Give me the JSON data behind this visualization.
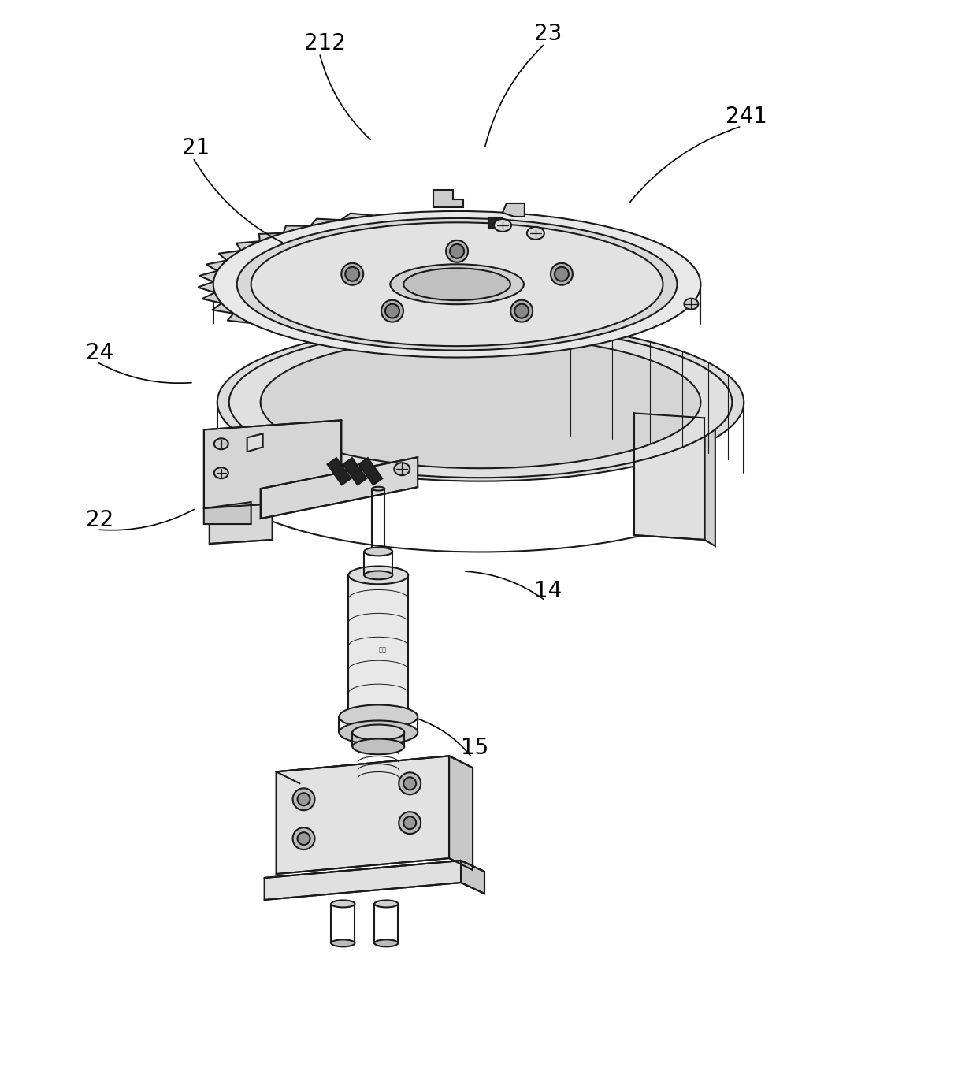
{
  "background_color": "#ffffff",
  "line_color": "#1a1a1a",
  "line_width": 1.5,
  "figsize": [
    12.3,
    13.68
  ],
  "dpi": 100,
  "annotations": [
    [
      "21",
      230,
      195,
      360,
      308
    ],
    [
      "212",
      385,
      62,
      472,
      178
    ],
    [
      "23",
      678,
      50,
      615,
      188
    ],
    [
      "241",
      922,
      155,
      798,
      258
    ],
    [
      "24",
      108,
      455,
      245,
      485
    ],
    [
      "22",
      108,
      668,
      248,
      645
    ],
    [
      "14",
      678,
      758,
      588,
      725
    ],
    [
      "15",
      585,
      958,
      528,
      912
    ]
  ]
}
